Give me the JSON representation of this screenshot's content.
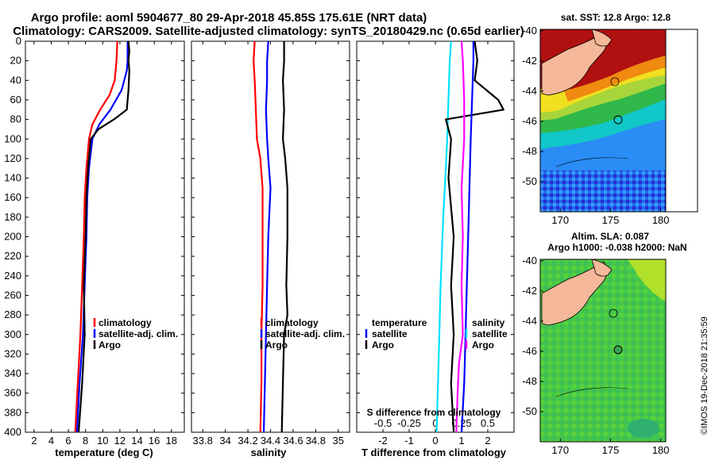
{
  "titles": {
    "line1": "Argo profile: aoml 5904677_80 29-Apr-2018 45.85S 175.61E (NRT data)",
    "line2": "Climatology: CARS2009. Satellite-adjusted climatology: synTS_20180429.nc (0.65d earlier)"
  },
  "watermark": "©IMOS 19-Dec-2018 21:35:59",
  "colors": {
    "climatology": "#ff0000",
    "satellite": "#0000ff",
    "argo": "#000000",
    "t_diff": "#00e0ff",
    "s_diff": "#ff00ff"
  },
  "depth_axis": {
    "min": 0,
    "max": 400,
    "ticks": [
      0,
      20,
      40,
      60,
      80,
      100,
      120,
      140,
      160,
      180,
      200,
      220,
      240,
      260,
      280,
      300,
      320,
      340,
      360,
      380,
      400
    ]
  },
  "chart_data": [
    {
      "type": "line",
      "name": "temperature",
      "xlabel": "temperature (deg C)",
      "xlim": [
        1,
        19.5
      ],
      "xticks": [
        2,
        4,
        6,
        8,
        10,
        12,
        14,
        16,
        18
      ],
      "ylim": [
        400,
        0
      ],
      "legend": [
        "climatology",
        "satellite-adj. clim.",
        "Argo"
      ],
      "series": [
        {
          "name": "climatology",
          "color": "#ff0000",
          "points": [
            [
              11.7,
              0
            ],
            [
              11.6,
              20
            ],
            [
              11.4,
              40
            ],
            [
              10.8,
              55
            ],
            [
              9.7,
              70
            ],
            [
              8.8,
              85
            ],
            [
              8.4,
              100
            ],
            [
              8.1,
              130
            ],
            [
              7.9,
              160
            ],
            [
              7.8,
              200
            ],
            [
              7.6,
              250
            ],
            [
              7.4,
              300
            ],
            [
              7.1,
              350
            ],
            [
              6.8,
              400
            ]
          ]
        },
        {
          "name": "satellite-adj. clim.",
          "color": "#0000ff",
          "points": [
            [
              12.9,
              0
            ],
            [
              12.9,
              20
            ],
            [
              12.8,
              30
            ],
            [
              12.2,
              50
            ],
            [
              10.9,
              70
            ],
            [
              9.6,
              85
            ],
            [
              8.8,
              100
            ],
            [
              8.4,
              130
            ],
            [
              8.2,
              160
            ],
            [
              8.1,
              200
            ],
            [
              7.9,
              250
            ],
            [
              7.7,
              300
            ],
            [
              7.3,
              350
            ],
            [
              7.0,
              400
            ]
          ]
        },
        {
          "name": "Argo",
          "color": "#000000",
          "points": [
            [
              13.0,
              0
            ],
            [
              13.1,
              10
            ],
            [
              13.0,
              20
            ],
            [
              13.1,
              30
            ],
            [
              13.0,
              50
            ],
            [
              12.8,
              70
            ],
            [
              11.3,
              80
            ],
            [
              9.5,
              90
            ],
            [
              8.6,
              100
            ],
            [
              8.3,
              130
            ],
            [
              8.1,
              160
            ],
            [
              8.0,
              200
            ],
            [
              7.8,
              250
            ],
            [
              7.9,
              300
            ],
            [
              7.6,
              350
            ],
            [
              7.2,
              400
            ]
          ]
        }
      ]
    },
    {
      "type": "line",
      "name": "salinity",
      "xlabel": "salinity",
      "xlim": [
        33.7,
        35.1
      ],
      "xticks": [
        33.8,
        34,
        34.2,
        34.4,
        34.6,
        34.8,
        35
      ],
      "xtick_labels": [
        "33.8",
        "34",
        "34.2",
        "34.4",
        "34.6",
        "34.8",
        "35"
      ],
      "ylim": [
        400,
        0
      ],
      "legend": [
        "climatology",
        "satellite-adj. clim.",
        "Argo"
      ],
      "series": [
        {
          "name": "climatology",
          "color": "#ff0000",
          "points": [
            [
              34.26,
              0
            ],
            [
              34.25,
              20
            ],
            [
              34.26,
              40
            ],
            [
              34.27,
              70
            ],
            [
              34.28,
              100
            ],
            [
              34.31,
              120
            ],
            [
              34.33,
              150
            ],
            [
              34.33,
              200
            ],
            [
              34.33,
              250
            ],
            [
              34.32,
              300
            ],
            [
              34.32,
              350
            ],
            [
              34.31,
              400
            ]
          ]
        },
        {
          "name": "satellite-adj. clim.",
          "color": "#0000ff",
          "points": [
            [
              34.38,
              0
            ],
            [
              34.37,
              20
            ],
            [
              34.37,
              40
            ],
            [
              34.36,
              70
            ],
            [
              34.37,
              100
            ],
            [
              34.38,
              120
            ],
            [
              34.4,
              150
            ],
            [
              34.38,
              200
            ],
            [
              34.37,
              250
            ],
            [
              34.36,
              300
            ],
            [
              34.35,
              350
            ],
            [
              34.34,
              400
            ]
          ]
        },
        {
          "name": "Argo",
          "color": "#000000",
          "points": [
            [
              34.52,
              0
            ],
            [
              34.52,
              20
            ],
            [
              34.51,
              40
            ],
            [
              34.52,
              70
            ],
            [
              34.51,
              100
            ],
            [
              34.53,
              120
            ],
            [
              34.55,
              150
            ],
            [
              34.55,
              200
            ],
            [
              34.54,
              250
            ],
            [
              34.55,
              280
            ],
            [
              34.52,
              300
            ],
            [
              34.51,
              350
            ],
            [
              34.5,
              400
            ]
          ]
        }
      ]
    },
    {
      "type": "line",
      "name": "difference",
      "xlabel": "T difference from climatology",
      "xlabel_top": "S difference from climatology",
      "xlim": [
        -3,
        3
      ],
      "xticks": [
        -2,
        -1,
        0,
        1,
        2
      ],
      "top_ticks": [
        -0.5,
        -0.25,
        0,
        0.25,
        0.5
      ],
      "top_tick_labels": [
        "-0.5",
        "-0.25",
        "0",
        "0.25",
        "0.5"
      ],
      "s_scale": 4,
      "ylim": [
        400,
        0
      ],
      "legend_temperature": {
        "title": "temperature",
        "items": [
          "satellite",
          "Argo"
        ]
      },
      "legend_salinity": {
        "title": "salinity",
        "items": [
          "satellite",
          "Argo"
        ]
      },
      "series": [
        {
          "name": "T satellite",
          "color": "#00e0ff",
          "points": [
            [
              0.6,
              0
            ],
            [
              0.55,
              20
            ],
            [
              0.5,
              60
            ],
            [
              0.45,
              100
            ],
            [
              0.4,
              130
            ],
            [
              0.3,
              180
            ],
            [
              0.2,
              250
            ],
            [
              0.15,
              300
            ],
            [
              0.1,
              350
            ],
            [
              0.05,
              400
            ]
          ]
        },
        {
          "name": "T Argo",
          "color": "#000000",
          "points": [
            [
              1.5,
              0
            ],
            [
              1.6,
              20
            ],
            [
              1.5,
              40
            ],
            [
              2.4,
              60
            ],
            [
              2.6,
              70
            ],
            [
              0.4,
              80
            ],
            [
              0.6,
              100
            ],
            [
              0.5,
              140
            ],
            [
              0.7,
              200
            ],
            [
              0.6,
              250
            ],
            [
              0.7,
              300
            ],
            [
              0.6,
              350
            ],
            [
              0.7,
              400
            ]
          ]
        },
        {
          "name": "S satellite",
          "color": "#0000ff",
          "points": [
            [
              1.45,
              0
            ],
            [
              1.45,
              20
            ],
            [
              1.4,
              60
            ],
            [
              1.35,
              100
            ],
            [
              1.3,
              150
            ],
            [
              1.25,
              200
            ],
            [
              1.2,
              250
            ],
            [
              1.15,
              300
            ],
            [
              1.1,
              350
            ],
            [
              1.0,
              400
            ]
          ]
        },
        {
          "name": "S Argo",
          "color": "#ff00ff",
          "points": [
            [
              1.0,
              0
            ],
            [
              1.05,
              20
            ],
            [
              1.1,
              60
            ],
            [
              1.1,
              100
            ],
            [
              1.0,
              150
            ],
            [
              1.05,
              200
            ],
            [
              1.0,
              250
            ],
            [
              1.05,
              300
            ],
            [
              0.9,
              330
            ],
            [
              0.85,
              360
            ],
            [
              0.8,
              400
            ]
          ]
        }
      ]
    }
  ],
  "maps": [
    {
      "name": "sst",
      "title": "sat. SST: 12.8 Argo: 12.8",
      "lat_ticks": [
        -40,
        -42,
        -44,
        -46,
        -48,
        -50
      ],
      "lon_ticks": [
        170,
        175,
        180
      ],
      "lon_range": [
        168,
        180.5
      ],
      "lat_range": [
        -52,
        -39.9
      ]
    },
    {
      "name": "sla",
      "title_line1": "Altim. SLA: 0.087",
      "title_line2": "Argo h1000: -0.038 h2000: NaN",
      "lat_ticks": [
        -40,
        -42,
        -44,
        -46,
        -48,
        -50
      ],
      "lon_ticks": [
        170,
        175,
        180
      ],
      "lon_range": [
        168,
        180.5
      ],
      "lat_range": [
        -52,
        -39.9
      ]
    }
  ]
}
